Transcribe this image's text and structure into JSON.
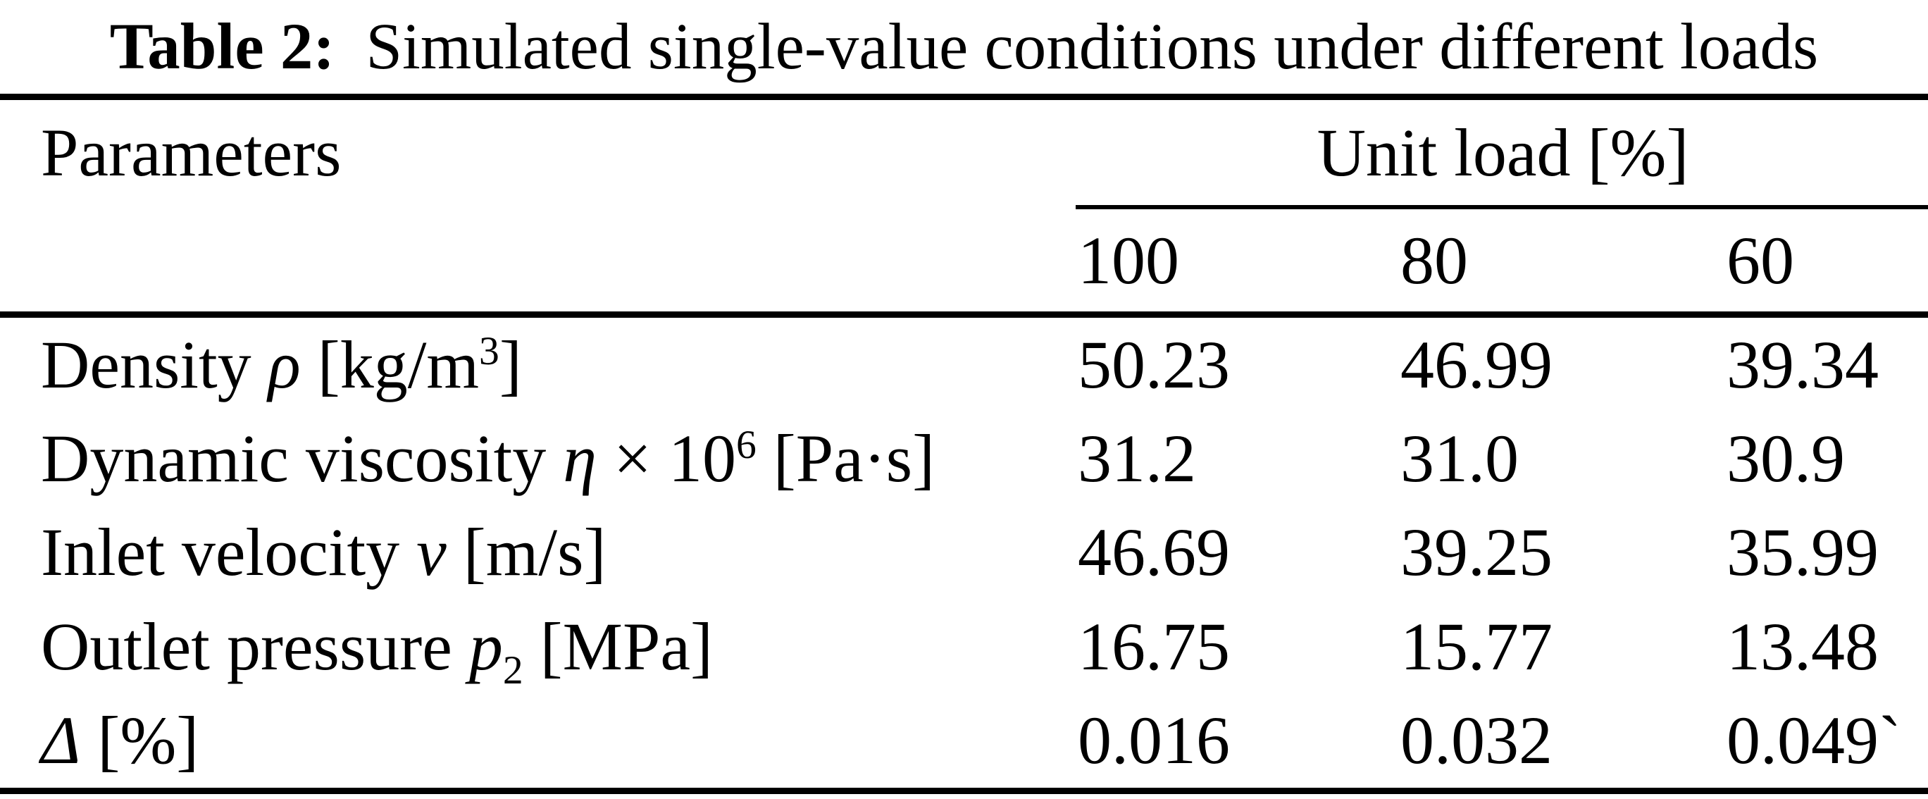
{
  "colors": {
    "background": "#ffffff",
    "text": "#000000",
    "rule": "#000000"
  },
  "caption": {
    "label": "Table 2:",
    "text": "Simulated single-value conditions under different loads"
  },
  "table": {
    "header": {
      "parameters": "Parameters",
      "group": "Unit load [%]",
      "columns": [
        "100",
        "80",
        "60"
      ]
    },
    "rows": [
      {
        "name": "density",
        "param": [
          {
            "t": "Density "
          },
          {
            "t": "ρ",
            "i": 1
          },
          {
            "t": " [kg/m"
          },
          {
            "t": "3",
            "sup": 1
          },
          {
            "t": "]"
          }
        ],
        "values": [
          "50.23",
          "46.99",
          "39.34"
        ]
      },
      {
        "name": "dynamic-viscosity",
        "param": [
          {
            "t": "Dynamic viscosity "
          },
          {
            "t": "η",
            "i": 1
          },
          {
            "t": " × 10"
          },
          {
            "t": "6",
            "sup": 1
          },
          {
            "t": " [Pa·s]"
          }
        ],
        "values": [
          "31.2",
          "31.0",
          "30.9"
        ]
      },
      {
        "name": "inlet-velocity",
        "param": [
          {
            "t": "Inlet velocity "
          },
          {
            "t": "v",
            "i": 1
          },
          {
            "t": " [m/s]"
          }
        ],
        "values": [
          "46.69",
          "39.25",
          "35.99"
        ]
      },
      {
        "name": "outlet-pressure",
        "param": [
          {
            "t": "Outlet pressure "
          },
          {
            "t": "p",
            "i": 1
          },
          {
            "t": "2",
            "sub": 1
          },
          {
            "t": " [MPa]"
          }
        ],
        "values": [
          "16.75",
          "15.77",
          "13.48"
        ]
      },
      {
        "name": "delta",
        "param": [
          {
            "t": "Δ",
            "i": 1
          },
          {
            "t": " [%]"
          }
        ],
        "values": [
          "0.016",
          "0.032",
          "0.049`"
        ]
      }
    ]
  },
  "chart_data": {
    "type": "table",
    "title": "Table 2: Simulated single-value conditions under different loads",
    "row_header": "Parameters",
    "column_group": "Unit load [%]",
    "columns": [
      "100",
      "80",
      "60"
    ],
    "rows": [
      {
        "parameter": "Density ρ [kg/m3]",
        "values": [
          50.23,
          46.99,
          39.34
        ]
      },
      {
        "parameter": "Dynamic viscosity η × 10^6 [Pa·s]",
        "values": [
          31.2,
          31.0,
          30.9
        ]
      },
      {
        "parameter": "Inlet velocity v [m/s]",
        "values": [
          46.69,
          39.25,
          35.99
        ]
      },
      {
        "parameter": "Outlet pressure p2 [MPa]",
        "values": [
          16.75,
          15.77,
          13.48
        ]
      },
      {
        "parameter": "Δ [%]",
        "values": [
          0.016,
          0.032,
          0.049
        ]
      }
    ]
  }
}
